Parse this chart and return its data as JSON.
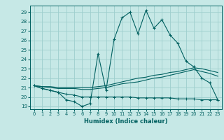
{
  "xlabel": "Humidex (Indice chaleur)",
  "bg_color": "#c6e8e6",
  "grid_color": "#9ecece",
  "line_color": "#006060",
  "xlim": [
    -0.5,
    23.5
  ],
  "ylim": [
    18.7,
    29.7
  ],
  "yticks": [
    19,
    20,
    21,
    22,
    23,
    24,
    25,
    26,
    27,
    28,
    29
  ],
  "xticks": [
    0,
    1,
    2,
    3,
    4,
    5,
    6,
    7,
    8,
    9,
    10,
    11,
    12,
    13,
    14,
    15,
    16,
    17,
    18,
    19,
    20,
    21,
    22,
    23
  ],
  "line1_x": [
    0,
    1,
    2,
    3,
    4,
    5,
    6,
    7,
    8,
    9,
    10,
    11,
    12,
    13,
    14,
    15,
    16,
    17,
    18,
    19,
    20,
    21,
    22,
    23
  ],
  "line1_y": [
    21.2,
    20.9,
    20.7,
    20.5,
    19.7,
    19.5,
    19.0,
    19.3,
    24.6,
    20.7,
    26.1,
    28.4,
    29.0,
    26.7,
    29.2,
    27.3,
    28.2,
    26.6,
    25.7,
    23.8,
    23.2,
    22.0,
    21.5,
    19.7
  ],
  "line2_x": [
    0,
    1,
    2,
    3,
    4,
    5,
    6,
    7,
    8,
    9,
    10,
    11,
    12,
    13,
    14,
    15,
    16,
    17,
    18,
    19,
    20,
    21,
    22,
    23
  ],
  "line2_y": [
    21.2,
    20.9,
    20.7,
    20.5,
    20.3,
    20.2,
    20.0,
    20.0,
    20.0,
    20.0,
    20.0,
    20.0,
    20.0,
    19.9,
    19.9,
    19.9,
    19.9,
    19.9,
    19.8,
    19.8,
    19.8,
    19.7,
    19.7,
    19.7
  ],
  "line3_x": [
    0,
    1,
    2,
    3,
    4,
    5,
    6,
    7,
    8,
    9,
    10,
    11,
    12,
    13,
    14,
    15,
    16,
    17,
    18,
    19,
    20,
    21,
    22,
    23
  ],
  "line3_y": [
    21.2,
    21.1,
    21.1,
    21.0,
    21.0,
    21.0,
    21.0,
    21.0,
    21.1,
    21.2,
    21.4,
    21.6,
    21.8,
    22.0,
    22.1,
    22.3,
    22.4,
    22.6,
    22.7,
    22.9,
    23.1,
    23.0,
    22.8,
    22.6
  ],
  "line4_x": [
    0,
    1,
    2,
    3,
    4,
    5,
    6,
    7,
    8,
    9,
    10,
    11,
    12,
    13,
    14,
    15,
    16,
    17,
    18,
    19,
    20,
    21,
    22,
    23
  ],
  "line4_y": [
    21.2,
    21.1,
    21.0,
    20.9,
    20.9,
    20.9,
    20.8,
    20.8,
    20.9,
    21.0,
    21.2,
    21.4,
    21.5,
    21.6,
    21.8,
    22.0,
    22.1,
    22.3,
    22.5,
    22.7,
    22.9,
    22.7,
    22.5,
    22.2
  ]
}
